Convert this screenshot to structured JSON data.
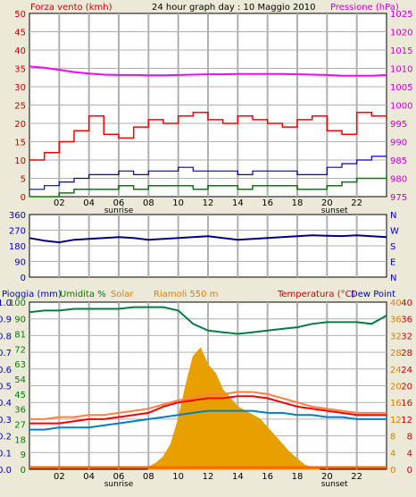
{
  "colors": {
    "background": "#ece9d8",
    "plot_background": "#ffffff",
    "grid": "#b0b0b0",
    "wind_max": "#ff0000",
    "wind_avg": "#0000cc",
    "wind_min": "#008000",
    "pressure": "#ff00ff",
    "direction": "#000080",
    "rain": "#ff6600",
    "humidity": "#008040",
    "solar": "#e8a000",
    "temperature": "#ff0000",
    "temp_hi": "#ff8040",
    "dew_point": "#0080c0",
    "red_text": "#cc0000",
    "green_text": "#008000",
    "orange_text": "#e08000",
    "blue_text": "#0000cc",
    "magenta_text": "#cc00cc",
    "dark_text": "#000000"
  },
  "header": {
    "wind_label": "Forza vento (kmh)",
    "title": "24 hour graph day : 10 Maggio 2010",
    "pressure_label": "Pressione (hPa)"
  },
  "lower_header": {
    "rain_label": "Pioggia (mm)",
    "humidity_label": "Umidita %",
    "solar_label": "Solar",
    "riamoli_label": "Riamoli 550 m",
    "temperature_label": "Temperatura (°C)",
    "dewpoint_label": "Dew Point"
  },
  "x_axis": {
    "ticks": [
      "02",
      "04",
      "06",
      "08",
      "10",
      "12",
      "14",
      "16",
      "18",
      "20",
      "22"
    ],
    "sunrise_label": "sunrise",
    "sunset_label": "sunset",
    "sunrise_hour": 6,
    "sunset_hour": 20.5
  },
  "chart_data": [
    {
      "type": "line",
      "name": "wind",
      "x_range_hours": [
        0,
        24
      ],
      "left_axis": {
        "ticks": [
          "0",
          "5",
          "10",
          "15",
          "20",
          "25",
          "30",
          "35",
          "40",
          "45",
          "50"
        ],
        "range": [
          0,
          50
        ]
      },
      "right_axis": {
        "ticks": [
          "975",
          "980",
          "985",
          "990",
          "995",
          "1000",
          "1005",
          "1010",
          "1015",
          "1020",
          "1025"
        ],
        "range": [
          975,
          1025
        ]
      },
      "series": [
        {
          "key": "pressure",
          "x": [
            0,
            1,
            2,
            3,
            4,
            5,
            6,
            7,
            8,
            9,
            10,
            11,
            12,
            13,
            14,
            15,
            16,
            17,
            18,
            19,
            20,
            21,
            22,
            23,
            24
          ],
          "y": [
            1010.5,
            1010.2,
            1009.6,
            1009.0,
            1008.6,
            1008.3,
            1008.2,
            1008.2,
            1008.1,
            1008.1,
            1008.2,
            1008.3,
            1008.4,
            1008.4,
            1008.5,
            1008.5,
            1008.5,
            1008.5,
            1008.4,
            1008.3,
            1008.2,
            1008.0,
            1008.0,
            1008.0,
            1008.2
          ]
        },
        {
          "key": "wind_max",
          "x": [
            0,
            1,
            2,
            3,
            4,
            5,
            6,
            7,
            8,
            9,
            10,
            11,
            12,
            13,
            14,
            15,
            16,
            17,
            18,
            19,
            20,
            21,
            22,
            23,
            24
          ],
          "y": [
            10,
            12,
            15,
            18,
            22,
            17,
            16,
            19,
            21,
            20,
            22,
            23,
            21,
            20,
            22,
            21,
            20,
            19,
            21,
            22,
            18,
            17,
            23,
            22,
            21
          ]
        },
        {
          "key": "wind_avg",
          "x": [
            0,
            1,
            2,
            3,
            4,
            5,
            6,
            7,
            8,
            9,
            10,
            11,
            12,
            13,
            14,
            15,
            16,
            17,
            18,
            19,
            20,
            21,
            22,
            23,
            24
          ],
          "y": [
            2,
            3,
            4,
            5,
            6,
            6,
            7,
            6,
            7,
            7,
            8,
            7,
            7,
            7,
            6,
            7,
            7,
            7,
            6,
            6,
            8,
            9,
            10,
            11,
            11
          ]
        },
        {
          "key": "wind_min",
          "x": [
            0,
            1,
            2,
            3,
            4,
            5,
            6,
            7,
            8,
            9,
            10,
            11,
            12,
            13,
            14,
            15,
            16,
            17,
            18,
            19,
            20,
            21,
            22,
            23,
            24
          ],
          "y": [
            0,
            0,
            1,
            2,
            2,
            2,
            3,
            2,
            3,
            3,
            3,
            2,
            3,
            3,
            2,
            3,
            3,
            3,
            2,
            2,
            3,
            4,
            5,
            5,
            6
          ]
        }
      ]
    },
    {
      "type": "line",
      "name": "wind_direction",
      "x_range_hours": [
        0,
        24
      ],
      "left_axis": {
        "ticks": [
          "0",
          "90",
          "180",
          "270",
          "360"
        ],
        "range": [
          0,
          360
        ]
      },
      "right_axis": {
        "ticks": [
          "N",
          "W",
          "S",
          "E",
          "N"
        ]
      },
      "series": [
        {
          "key": "direction",
          "x": [
            0,
            1,
            2,
            3,
            4,
            5,
            6,
            7,
            8,
            9,
            10,
            11,
            12,
            13,
            14,
            15,
            16,
            17,
            18,
            19,
            20,
            21,
            22,
            23,
            24
          ],
          "y": [
            225,
            210,
            200,
            215,
            220,
            225,
            230,
            225,
            215,
            220,
            225,
            230,
            235,
            225,
            215,
            220,
            225,
            230,
            235,
            240,
            238,
            236,
            240,
            235,
            230
          ]
        }
      ]
    },
    {
      "type": "line",
      "name": "rain_humidity_solar_temperature",
      "x_range_hours": [
        0,
        24
      ],
      "axis_rain": {
        "ticks": [
          "0.0",
          "0.1",
          "0.2",
          "0.3",
          "0.4",
          "0.5",
          "0.6",
          "0.7",
          "0.8",
          "0.9",
          "1.0"
        ],
        "range": [
          0,
          1
        ]
      },
      "axis_humidity": {
        "ticks": [
          "0",
          "9",
          "18",
          "27",
          "36",
          "45",
          "54",
          "63",
          "72",
          "81",
          "90",
          "100"
        ],
        "range": [
          0,
          100
        ]
      },
      "axis_temp_outer": {
        "ticks": [
          "0",
          "4",
          "8",
          "12",
          "16",
          "20",
          "24",
          "28",
          "32",
          "36",
          "40"
        ],
        "range": [
          0,
          40
        ]
      },
      "axis_temp_inner": {
        "ticks": [
          "0",
          "4",
          "8",
          "12",
          "16",
          "20",
          "24",
          "28",
          "32",
          "36",
          "40"
        ],
        "range": [
          0,
          40
        ]
      },
      "series": [
        {
          "key": "humidity",
          "x": [
            0,
            1,
            2,
            3,
            4,
            5,
            6,
            7,
            8,
            9,
            10,
            11,
            12,
            13,
            14,
            15,
            16,
            17,
            18,
            19,
            20,
            21,
            22,
            23,
            24
          ],
          "y": [
            94,
            95,
            95,
            96,
            96,
            96,
            96,
            97,
            97,
            97,
            95,
            87,
            83,
            82,
            81,
            82,
            83,
            84,
            85,
            87,
            88,
            88,
            88,
            87,
            92
          ]
        },
        {
          "key": "temperature",
          "x": [
            0,
            1,
            2,
            3,
            4,
            5,
            6,
            7,
            8,
            9,
            10,
            11,
            12,
            13,
            14,
            15,
            16,
            17,
            18,
            19,
            20,
            21,
            22,
            23,
            24
          ],
          "y": [
            11,
            11,
            11,
            11.5,
            12,
            12,
            12.5,
            13,
            13.5,
            15,
            16,
            16.5,
            17,
            17,
            17.5,
            17.5,
            17,
            16,
            15,
            14.5,
            14,
            13.5,
            13,
            13,
            13
          ]
        },
        {
          "key": "temp_hi",
          "x": [
            0,
            1,
            2,
            3,
            4,
            5,
            6,
            7,
            8,
            9,
            10,
            11,
            12,
            13,
            14,
            15,
            16,
            17,
            18,
            19,
            20,
            21,
            22,
            23,
            24
          ],
          "y": [
            12,
            12,
            12.5,
            12.5,
            13,
            13,
            13.5,
            14,
            14.5,
            15.5,
            16.5,
            17,
            18,
            18,
            18.5,
            18.5,
            18,
            17,
            16,
            15,
            14.5,
            14,
            13.5,
            13.5,
            13.5
          ]
        },
        {
          "key": "dew_point",
          "x": [
            0,
            1,
            2,
            3,
            4,
            5,
            6,
            7,
            8,
            9,
            10,
            11,
            12,
            13,
            14,
            15,
            16,
            17,
            18,
            19,
            20,
            21,
            22,
            23,
            24
          ],
          "y": [
            9.5,
            9.5,
            10,
            10,
            10,
            10.5,
            11,
            11.5,
            12,
            12.5,
            13,
            13.5,
            14,
            14,
            14,
            14,
            13.5,
            13.5,
            13,
            13,
            12.5,
            12.5,
            12,
            12,
            12
          ]
        },
        {
          "key": "solar",
          "x": [
            8,
            8.5,
            9,
            9.5,
            10,
            10.5,
            11,
            11.5,
            12,
            12.5,
            13,
            13.5,
            14,
            14.5,
            15,
            15.5,
            16,
            16.5,
            17,
            17.5,
            18,
            18.5,
            19,
            19.5
          ],
          "y": [
            0.5,
            1.5,
            3,
            6,
            12,
            20,
            27,
            29,
            25,
            23,
            19,
            17,
            15,
            14,
            13,
            12,
            10,
            8,
            6,
            4,
            2.5,
            1,
            0.5,
            0
          ]
        }
      ]
    }
  ]
}
